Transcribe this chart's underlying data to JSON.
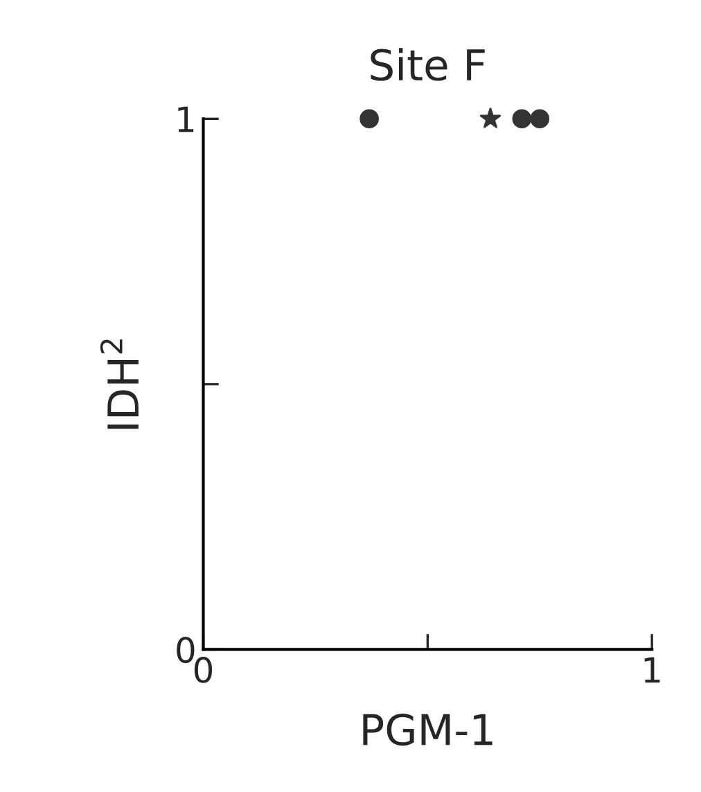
{
  "chart_data": {
    "type": "scatter",
    "title": "Site F",
    "xlabel": "PGM-1",
    "ylabel": "IDH$^{2}$",
    "series": [
      {
        "color": "#333333",
        "marker": "circle",
        "x": [
          0.37,
          0.71,
          0.75
        ],
        "values": [
          1,
          1,
          1
        ]
      },
      {
        "color": "#333333",
        "marker": "star",
        "x": [
          0.64
        ],
        "values": [
          1
        ]
      }
    ],
    "xlim": [
      0,
      1
    ],
    "ylim": [
      0,
      1
    ],
    "xticks": [
      0,
      {
        "value": 0.5,
        "label": null
      },
      1
    ],
    "yticks": [
      0,
      {
        "value": 0.5,
        "label": null
      },
      1
    ],
    "grid": false,
    "legend": false
  }
}
